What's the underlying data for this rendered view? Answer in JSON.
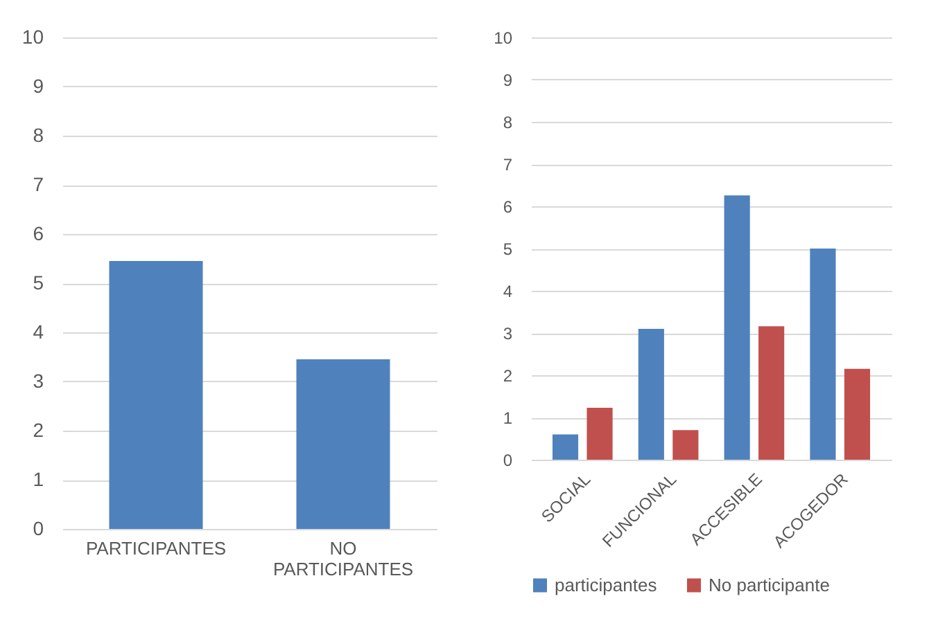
{
  "chart_data": [
    {
      "type": "bar",
      "categories": [
        "PARTICIPANTES",
        "NO PARTICIPANTES"
      ],
      "values": [
        5.45,
        3.45
      ],
      "color": "#4f81bd",
      "ylim": [
        0,
        10
      ],
      "yticks": [
        0,
        1,
        2,
        3,
        4,
        5,
        6,
        7,
        8,
        9,
        10
      ],
      "grid": "y"
    },
    {
      "type": "bar",
      "categories": [
        "SOCIAL",
        "FUNCIONAL",
        "ACCESIBLE",
        "ACOGEDOR"
      ],
      "series": [
        {
          "name": "participantes",
          "color": "#4f81bd",
          "values": [
            0.6,
            3.1,
            6.26,
            5.0
          ]
        },
        {
          "name": "No participante",
          "color": "#c0504d",
          "values": [
            1.23,
            0.7,
            3.16,
            2.15
          ]
        }
      ],
      "ylim": [
        0,
        10
      ],
      "yticks": [
        0,
        1,
        2,
        3,
        4,
        5,
        6,
        7,
        8,
        9,
        10
      ],
      "grid": "y",
      "legend": "bottom"
    }
  ]
}
